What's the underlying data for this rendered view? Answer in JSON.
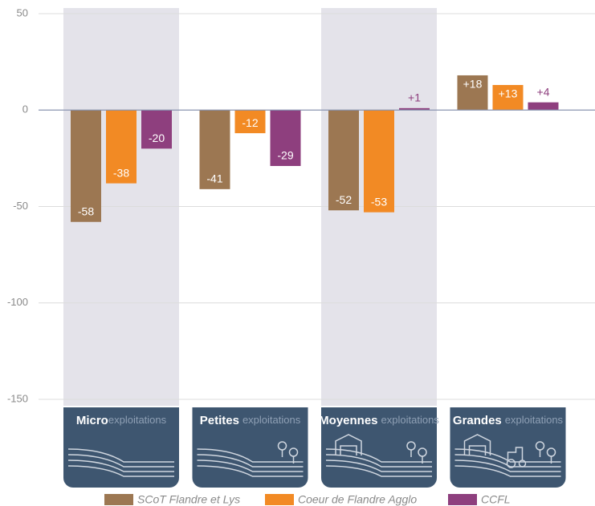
{
  "chart_data": {
    "type": "bar",
    "categories": [
      "Micro",
      "Petites",
      "Moyennes",
      "Grandes"
    ],
    "category_suffix": "exploitations",
    "series": [
      {
        "name": "SCoT Flandre et Lys",
        "color": "#9c7752",
        "values": [
          -58,
          -41,
          -52,
          18
        ],
        "value_labels": [
          "-58",
          "-41",
          "-52",
          "+18"
        ]
      },
      {
        "name": "Coeur de Flandre Agglo",
        "color": "#f28a24",
        "values": [
          -38,
          -12,
          -53,
          13
        ],
        "value_labels": [
          "-38",
          "-12",
          "-53",
          "+13"
        ]
      },
      {
        "name": "CCFL",
        "color": "#8e3f7e",
        "values": [
          -20,
          -29,
          1,
          4
        ],
        "value_labels": [
          "-20",
          "-29",
          "+1",
          "+4"
        ]
      }
    ],
    "ylim": [
      -150,
      50
    ],
    "yticks": [
      -150,
      -100,
      -50,
      0,
      50
    ],
    "grid": true,
    "legend": "bottom"
  }
}
